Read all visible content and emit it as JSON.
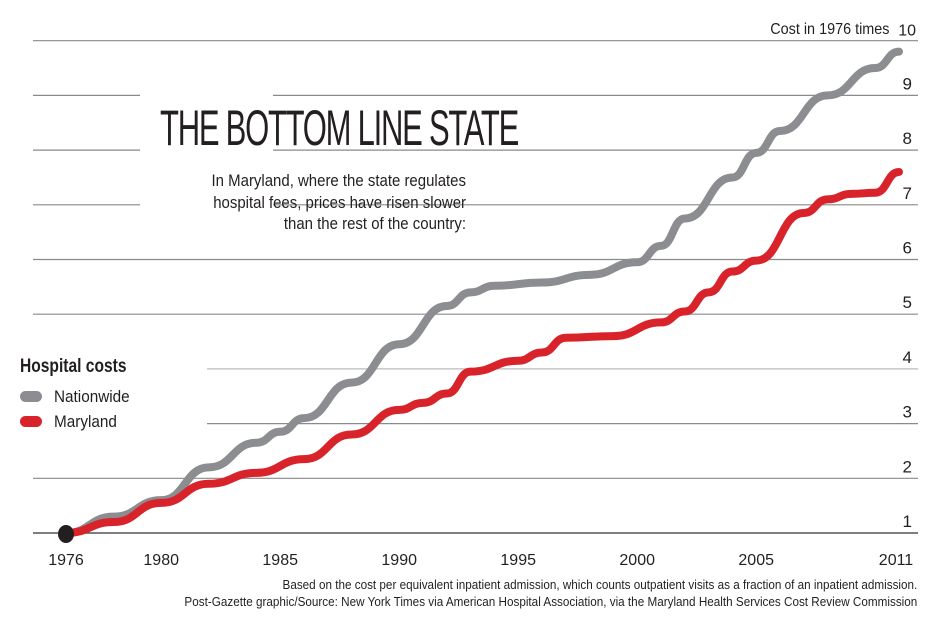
{
  "chart_data": {
    "type": "line",
    "title": "THE BOTTOM LINE STATE",
    "subtitle": [
      "In Maryland, where the state regulates",
      "hospital fees, prices have risen slower",
      "than the rest of the country:"
    ],
    "ylabel": "Cost in 1976 times",
    "xlim": [
      1976,
      2011
    ],
    "ylim": [
      1,
      10
    ],
    "yticks": [
      1,
      2,
      3,
      4,
      5,
      6,
      7,
      8,
      9,
      10
    ],
    "xticks": [
      1976,
      1980,
      1985,
      1990,
      1995,
      2000,
      2005,
      2011
    ],
    "grid": true,
    "legend": {
      "title": "Hospital costs",
      "placement": "left"
    },
    "series": [
      {
        "name": "Nationwide",
        "color": "#8c8d90",
        "x": [
          1976,
          1978,
          1980,
          1982,
          1984,
          1985,
          1986,
          1988,
          1990,
          1992,
          1993,
          1994,
          1996,
          1998,
          2000,
          2001,
          2002,
          2004,
          2005,
          2006,
          2008,
          2010,
          2011
        ],
        "y": [
          1.0,
          1.3,
          1.6,
          2.2,
          2.65,
          2.85,
          3.1,
          3.75,
          4.45,
          5.15,
          5.4,
          5.52,
          5.58,
          5.72,
          5.95,
          6.25,
          6.75,
          7.5,
          7.95,
          8.35,
          9.0,
          9.5,
          9.8
        ]
      },
      {
        "name": "Maryland",
        "color": "#d9232a",
        "x": [
          1976,
          1978,
          1980,
          1982,
          1984,
          1986,
          1988,
          1990,
          1991,
          1992,
          1993,
          1995,
          1996,
          1997,
          1999,
          2001,
          2002,
          2003,
          2004,
          2005,
          2007,
          2008,
          2009,
          2010,
          2011
        ],
        "y": [
          1.0,
          1.2,
          1.55,
          1.9,
          2.1,
          2.35,
          2.8,
          3.25,
          3.38,
          3.55,
          3.95,
          4.15,
          4.3,
          4.57,
          4.6,
          4.85,
          5.05,
          5.4,
          5.78,
          5.98,
          6.85,
          7.1,
          7.2,
          7.22,
          7.6
        ]
      }
    ],
    "start_marker": {
      "x": 1976,
      "y": 1,
      "color": "#231f20"
    }
  },
  "notes": [
    "Based on the cost per equivalent inpatient admission, which counts outpatient visits as a fraction of an inpatient admission.",
    "Post-Gazette graphic/Source: New York Times via American Hospital Association, via the Maryland Health Services Cost Review Commission"
  ]
}
